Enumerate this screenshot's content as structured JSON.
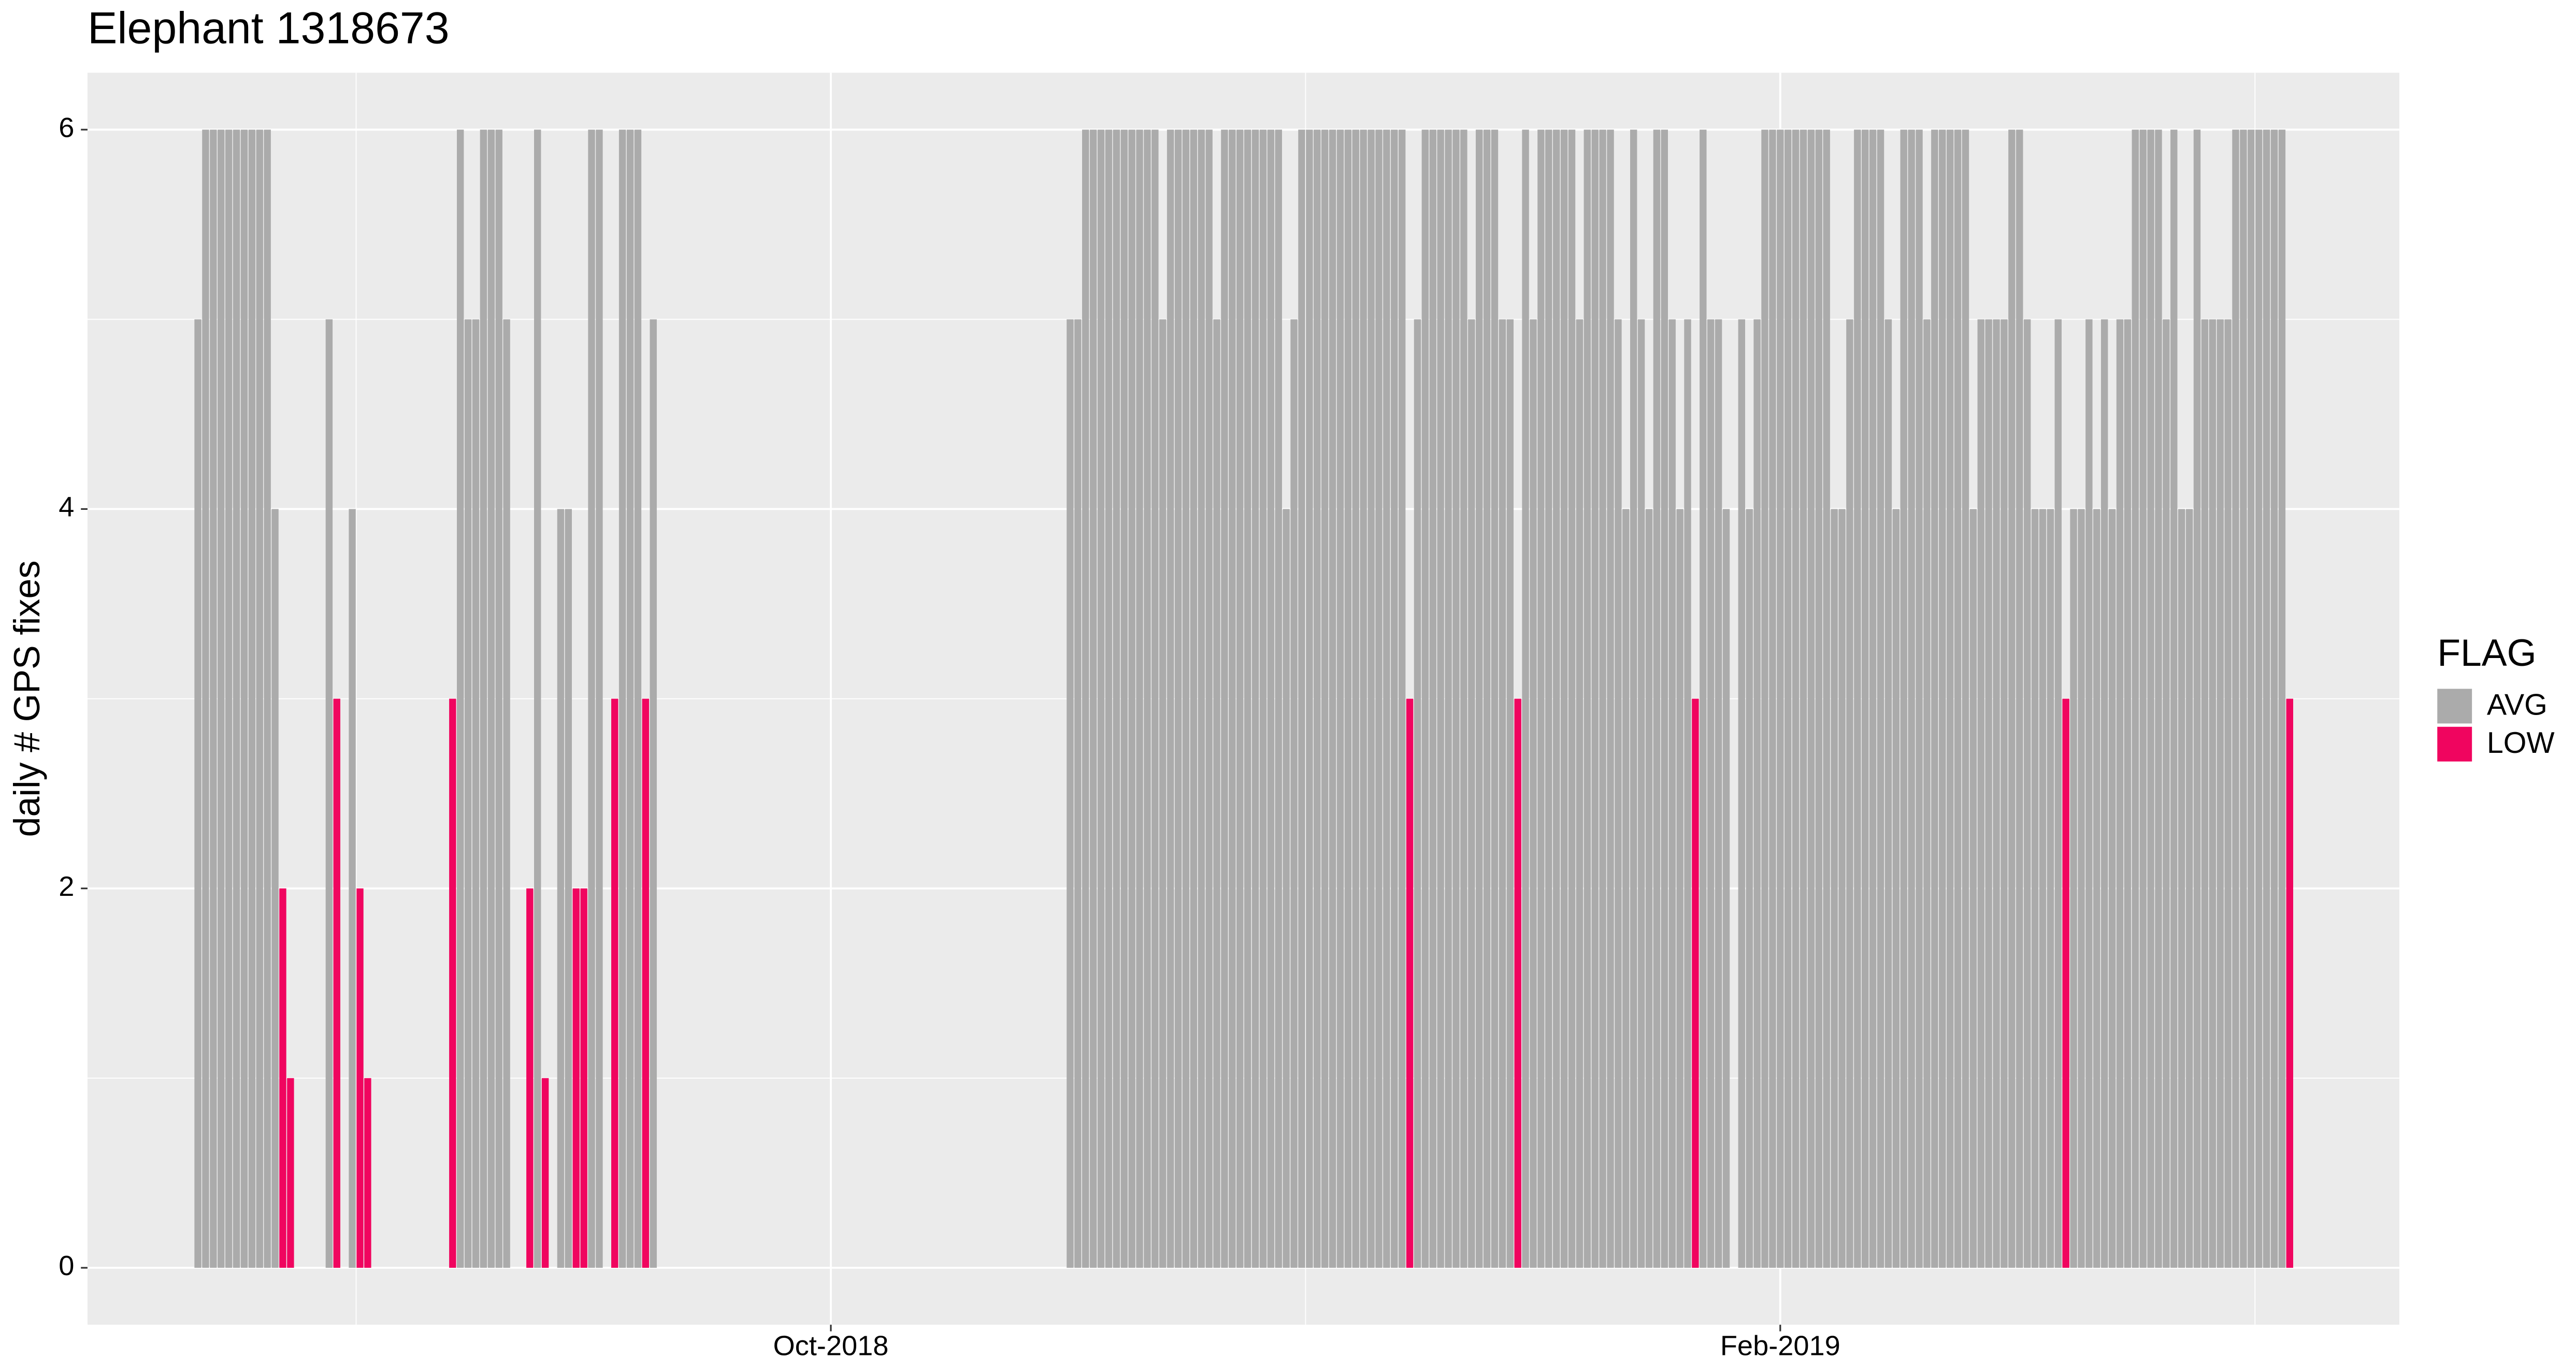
{
  "chart_data": {
    "type": "bar",
    "title": "Elephant 1318673",
    "y_label": "daily # GPS fixes",
    "legend_title": "FLAG",
    "xlim": [
      -96.3,
      203.2
    ],
    "xticks": [
      {
        "value": 0,
        "label": "Oct-2018"
      },
      {
        "value": 123,
        "label": "Feb-2019"
      }
    ],
    "ylim": [
      -0.3,
      6.3
    ],
    "yticks": [
      0,
      2,
      4,
      6
    ],
    "grid": true,
    "legend": "right",
    "series": [
      {
        "name": "AVG",
        "color": "#ababab",
        "x": [
          -82,
          -81,
          -80,
          -79,
          -78,
          -77,
          -76,
          -75,
          -74,
          -73,
          -72,
          -65,
          -62,
          -48,
          -47,
          -46,
          -45,
          -44,
          -43,
          -42,
          -38,
          -35,
          -34,
          -31,
          -30,
          -27,
          -26,
          -25,
          -23,
          31,
          32,
          33,
          34,
          35,
          36,
          37,
          38,
          39,
          40,
          41,
          42,
          43,
          44,
          45,
          46,
          47,
          48,
          49,
          50,
          51,
          52,
          53,
          54,
          55,
          56,
          57,
          58,
          59,
          60,
          61,
          62,
          63,
          64,
          65,
          66,
          67,
          68,
          69,
          70,
          71,
          72,
          73,
          74,
          76,
          77,
          78,
          79,
          80,
          81,
          82,
          83,
          84,
          85,
          86,
          87,
          88,
          90,
          91,
          92,
          93,
          94,
          95,
          96,
          97,
          98,
          99,
          100,
          101,
          102,
          103,
          104,
          105,
          106,
          107,
          108,
          109,
          110,
          111,
          113,
          114,
          115,
          116,
          118,
          119,
          120,
          121,
          122,
          123,
          124,
          125,
          126,
          127,
          128,
          129,
          130,
          131,
          132,
          133,
          134,
          135,
          136,
          137,
          138,
          139,
          140,
          141,
          142,
          143,
          144,
          145,
          146,
          147,
          148,
          149,
          150,
          151,
          152,
          153,
          154,
          155,
          156,
          157,
          158,
          159,
          161,
          162,
          163,
          164,
          165,
          166,
          167,
          168,
          169,
          170,
          171,
          172,
          173,
          174,
          175,
          176,
          177,
          178,
          179,
          180,
          181,
          182,
          183,
          184,
          185,
          186,
          187,
          188
        ],
        "values": [
          5,
          6,
          6,
          6,
          6,
          6,
          6,
          6,
          6,
          6,
          4,
          5,
          4,
          6,
          5,
          5,
          6,
          6,
          6,
          5,
          6,
          4,
          4,
          6,
          6,
          6,
          6,
          6,
          5,
          5,
          5,
          6,
          6,
          6,
          6,
          6,
          6,
          6,
          6,
          6,
          6,
          5,
          6,
          6,
          6,
          6,
          6,
          6,
          5,
          6,
          6,
          6,
          6,
          6,
          6,
          6,
          6,
          4,
          5,
          6,
          6,
          6,
          6,
          6,
          6,
          6,
          6,
          6,
          6,
          6,
          6,
          6,
          6,
          5,
          6,
          6,
          6,
          6,
          6,
          6,
          5,
          6,
          6,
          6,
          5,
          5,
          6,
          5,
          6,
          6,
          6,
          6,
          6,
          5,
          6,
          6,
          6,
          6,
          5,
          4,
          6,
          5,
          4,
          6,
          6,
          5,
          4,
          5,
          6,
          5,
          5,
          4,
          5,
          4,
          5,
          6,
          6,
          6,
          6,
          6,
          6,
          6,
          6,
          6,
          4,
          4,
          5,
          6,
          6,
          6,
          6,
          5,
          4,
          6,
          6,
          6,
          5,
          6,
          6,
          6,
          6,
          6,
          4,
          5,
          5,
          5,
          5,
          6,
          6,
          5,
          4,
          4,
          4,
          5,
          4,
          4,
          5,
          4,
          5,
          4,
          5,
          5,
          6,
          6,
          6,
          6,
          5,
          6,
          4,
          4,
          6,
          5,
          5,
          5,
          5,
          6,
          6,
          6,
          6,
          6,
          6,
          6
        ]
      },
      {
        "name": "LOW",
        "color": "#f0055f",
        "x": [
          -71,
          -70,
          -64,
          -61,
          -60,
          -49,
          -39,
          -37,
          -33,
          -32,
          -28,
          -24,
          75,
          89,
          112,
          160,
          189
        ],
        "values": [
          2,
          1,
          3,
          2,
          1,
          3,
          2,
          1,
          2,
          2,
          3,
          3,
          3,
          3,
          3,
          3,
          3
        ]
      }
    ]
  }
}
